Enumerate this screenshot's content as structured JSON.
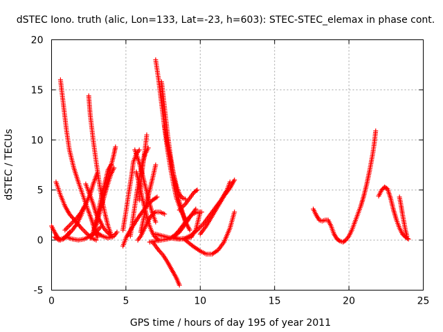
{
  "chart_data": {
    "type": "scatter",
    "title": "dSTEC Iono. truth (alic, Lon=133, Lat=-23, h=603): STEC-STEC_elemax in phase cont.",
    "xlabel": "GPS time / hours of day 195 of year 2011",
    "ylabel": "dSTEC  / TECUs",
    "xlim": [
      0,
      25
    ],
    "ylim": [
      -5,
      20
    ],
    "xticks": [
      0,
      5,
      10,
      15,
      20,
      25
    ],
    "yticks": [
      -5,
      0,
      5,
      10,
      15,
      20
    ],
    "grid": true,
    "marker": "+",
    "color": "#ff0000",
    "series": [
      {
        "x": [
          0.0,
          0.2,
          0.4,
          0.6,
          0.8,
          1.0,
          1.2
        ],
        "y": [
          1.4,
          0.8,
          0.3,
          0.0,
          0.1,
          0.4,
          0.8
        ]
      },
      {
        "x": [
          0.6,
          0.8,
          1.0,
          1.2,
          1.5,
          1.8,
          2.1,
          2.4,
          2.7,
          2.9,
          3.1
        ],
        "y": [
          16.0,
          13.5,
          11.0,
          9.0,
          7.2,
          5.8,
          4.5,
          3.2,
          2.0,
          1.0,
          0.3
        ]
      },
      {
        "x": [
          0.3,
          0.6,
          0.9,
          1.2,
          1.6,
          2.0,
          2.4,
          2.7,
          3.0
        ],
        "y": [
          5.8,
          4.5,
          3.4,
          2.6,
          1.9,
          1.2,
          0.6,
          0.2,
          0.0
        ]
      },
      {
        "x": [
          0.2,
          0.5,
          0.8,
          1.1,
          1.4,
          1.7,
          2.0,
          2.2
        ],
        "y": [
          0.3,
          0.0,
          0.2,
          0.5,
          1.0,
          1.6,
          2.5,
          3.3
        ]
      },
      {
        "x": [
          0.9,
          1.3,
          1.7,
          2.0,
          2.3,
          2.6,
          2.8,
          3.1
        ],
        "y": [
          1.0,
          1.6,
          2.2,
          2.8,
          3.6,
          4.6,
          5.6,
          6.8
        ]
      },
      {
        "x": [
          1.0,
          1.4,
          1.8,
          2.2,
          2.6,
          3.0,
          3.3
        ],
        "y": [
          0.3,
          0.1,
          0.0,
          0.1,
          0.4,
          0.8,
          1.3
        ]
      },
      {
        "x": [
          2.5,
          2.6,
          2.8,
          3.0,
          3.2,
          3.4,
          3.6,
          3.8,
          4.0
        ],
        "y": [
          14.4,
          12.5,
          10.0,
          7.8,
          5.8,
          4.0,
          2.6,
          1.4,
          0.6
        ]
      },
      {
        "x": [
          2.3,
          2.5,
          2.8,
          3.0,
          3.3,
          3.5,
          3.8,
          4.1
        ],
        "y": [
          5.6,
          4.8,
          3.6,
          2.6,
          1.8,
          1.2,
          0.7,
          0.3
        ]
      },
      {
        "x": [
          2.6,
          2.8,
          3.0,
          3.2,
          3.4,
          3.6,
          3.8,
          4.0
        ],
        "y": [
          0.2,
          0.8,
          1.8,
          3.2,
          4.6,
          5.8,
          7.0,
          7.5
        ]
      },
      {
        "x": [
          2.8,
          3.1,
          3.4,
          3.7,
          4.0,
          4.2
        ],
        "y": [
          0.5,
          2.0,
          3.6,
          5.2,
          6.6,
          7.2
        ]
      },
      {
        "x": [
          3.0,
          3.2,
          3.4,
          3.6,
          3.8,
          4.0,
          4.2,
          4.3
        ],
        "y": [
          1.8,
          2.8,
          3.8,
          5.0,
          6.2,
          7.4,
          8.6,
          9.3
        ]
      },
      {
        "x": [
          3.0,
          3.4,
          3.8,
          4.2,
          4.4
        ],
        "y": [
          0.8,
          0.4,
          0.2,
          0.4,
          0.8
        ]
      },
      {
        "x": [
          4.8,
          5.0,
          5.3,
          5.6,
          5.9,
          6.2,
          6.5,
          6.8,
          7.1
        ],
        "y": [
          -0.6,
          0.2,
          1.0,
          1.7,
          2.4,
          3.0,
          3.6,
          4.0,
          4.3
        ]
      },
      {
        "x": [
          4.8,
          5.0,
          5.2,
          5.4,
          5.5,
          5.7,
          5.9
        ],
        "y": [
          1.0,
          2.8,
          4.8,
          6.6,
          7.8,
          8.6,
          9.0
        ]
      },
      {
        "x": [
          5.3,
          5.5,
          5.7,
          5.9,
          6.1,
          6.3,
          6.5
        ],
        "y": [
          0.4,
          2.4,
          4.4,
          6.2,
          7.6,
          8.6,
          9.2
        ]
      },
      {
        "x": [
          5.6,
          5.8,
          6.0,
          6.2,
          6.4,
          6.6,
          6.8,
          7.0
        ],
        "y": [
          9.0,
          8.2,
          7.2,
          6.0,
          4.8,
          3.6,
          2.6,
          1.8
        ]
      },
      {
        "x": [
          5.7,
          5.9,
          6.1,
          6.3,
          6.5,
          6.7,
          6.9,
          7.2
        ],
        "y": [
          6.8,
          5.6,
          4.2,
          3.0,
          1.8,
          1.0,
          0.4,
          0.0
        ]
      },
      {
        "x": [
          5.8,
          6.0,
          6.2,
          6.4,
          6.6,
          6.8,
          7.0,
          7.3,
          7.6
        ],
        "y": [
          0.0,
          0.4,
          1.0,
          1.6,
          2.2,
          2.6,
          2.8,
          2.8,
          2.6
        ]
      },
      {
        "x": [
          5.9,
          6.0,
          6.1,
          6.2,
          6.3,
          6.4
        ],
        "y": [
          4.0,
          5.5,
          7.0,
          8.2,
          9.2,
          10.5
        ]
      },
      {
        "x": [
          6.0,
          6.2,
          6.4,
          6.6,
          6.8,
          7.0
        ],
        "y": [
          0.8,
          2.2,
          3.8,
          5.0,
          6.2,
          7.5
        ]
      },
      {
        "x": [
          7.0,
          7.2,
          7.4,
          7.6,
          7.8,
          8.0,
          8.2,
          8.4,
          8.7,
          9.0
        ],
        "y": [
          18.0,
          16.0,
          13.6,
          11.2,
          9.0,
          7.2,
          5.6,
          4.2,
          3.0,
          2.0
        ]
      },
      {
        "x": [
          7.4,
          7.6,
          7.8,
          8.0,
          8.2,
          8.4,
          8.6,
          8.8,
          9.0,
          9.3
        ],
        "y": [
          15.8,
          13.2,
          10.6,
          8.4,
          6.6,
          5.0,
          3.8,
          2.8,
          1.8,
          1.0
        ]
      },
      {
        "x": [
          7.6,
          7.8,
          8.0,
          8.2,
          8.4,
          8.6,
          8.8,
          9.0
        ],
        "y": [
          11.4,
          9.6,
          8.0,
          6.6,
          5.4,
          4.6,
          4.2,
          4.1
        ]
      },
      {
        "x": [
          6.8,
          7.0,
          7.2,
          7.5,
          7.8,
          8.1,
          8.4,
          8.6
        ],
        "y": [
          -0.2,
          -0.6,
          -1.0,
          -1.5,
          -2.2,
          -3.0,
          -3.8,
          -4.5
        ]
      },
      {
        "x": [
          6.6,
          7.0,
          7.4,
          7.8,
          8.2,
          8.6,
          9.0,
          9.4,
          9.7
        ],
        "y": [
          -0.2,
          -0.1,
          0.0,
          0.1,
          0.3,
          0.8,
          1.6,
          2.5,
          3.1
        ]
      },
      {
        "x": [
          7.0,
          7.5,
          8.0,
          8.5,
          9.0,
          9.4,
          9.7,
          10.0
        ],
        "y": [
          0.6,
          0.4,
          0.2,
          0.1,
          0.1,
          0.3,
          1.0,
          2.8
        ]
      },
      {
        "x": [
          8.0,
          8.3,
          8.6,
          8.9,
          9.2,
          9.5,
          9.8,
          10.1
        ],
        "y": [
          0.2,
          0.5,
          1.0,
          1.6,
          2.2,
          2.6,
          2.8,
          2.8
        ]
      },
      {
        "x": [
          8.2,
          8.6,
          9.0,
          9.4,
          9.8,
          10.2,
          10.6,
          11.0,
          11.4,
          11.8,
          12.0
        ],
        "y": [
          0.3,
          0.1,
          0.2,
          0.5,
          1.0,
          1.6,
          2.4,
          3.2,
          4.0,
          5.0,
          5.8
        ]
      },
      {
        "x": [
          8.6,
          9.0,
          9.2,
          9.4,
          9.6,
          9.8
        ],
        "y": [
          3.0,
          3.6,
          4.0,
          4.4,
          4.8,
          5.0
        ]
      },
      {
        "x": [
          9.0,
          9.5,
          10.0,
          10.4,
          10.8,
          11.2,
          11.6,
          12.0,
          12.3
        ],
        "y": [
          0.0,
          -0.6,
          -1.1,
          -1.4,
          -1.4,
          -1.0,
          -0.2,
          1.2,
          2.8
        ]
      },
      {
        "x": [
          10.0,
          10.4,
          10.8,
          11.2,
          11.6,
          12.0,
          12.3
        ],
        "y": [
          0.6,
          1.4,
          2.4,
          3.4,
          4.4,
          5.2,
          6.0
        ]
      },
      {
        "x": [
          17.6,
          17.8,
          18.0,
          18.2,
          18.4,
          18.6,
          18.8,
          19.0,
          19.2,
          19.4,
          19.6,
          19.8,
          20.0,
          20.2,
          20.4,
          20.6,
          20.8,
          21.0,
          21.2,
          21.4,
          21.6,
          21.7,
          21.8
        ],
        "y": [
          3.1,
          2.5,
          2.0,
          1.9,
          2.0,
          2.0,
          1.4,
          0.6,
          0.1,
          -0.1,
          -0.2,
          0.0,
          0.4,
          1.0,
          1.8,
          2.6,
          3.4,
          4.4,
          5.6,
          7.0,
          8.6,
          9.6,
          10.9
        ]
      },
      {
        "x": [
          22.0,
          22.2,
          22.4,
          22.6,
          22.8,
          23.0,
          23.2,
          23.4,
          23.6,
          23.8,
          24.0
        ],
        "y": [
          4.4,
          5.0,
          5.3,
          5.1,
          4.2,
          3.0,
          2.0,
          1.2,
          0.6,
          0.3,
          0.1
        ]
      },
      {
        "x": [
          23.4,
          23.5,
          23.6,
          23.7,
          23.8,
          23.9
        ],
        "y": [
          4.3,
          3.5,
          2.6,
          1.8,
          1.0,
          0.4
        ]
      }
    ]
  }
}
